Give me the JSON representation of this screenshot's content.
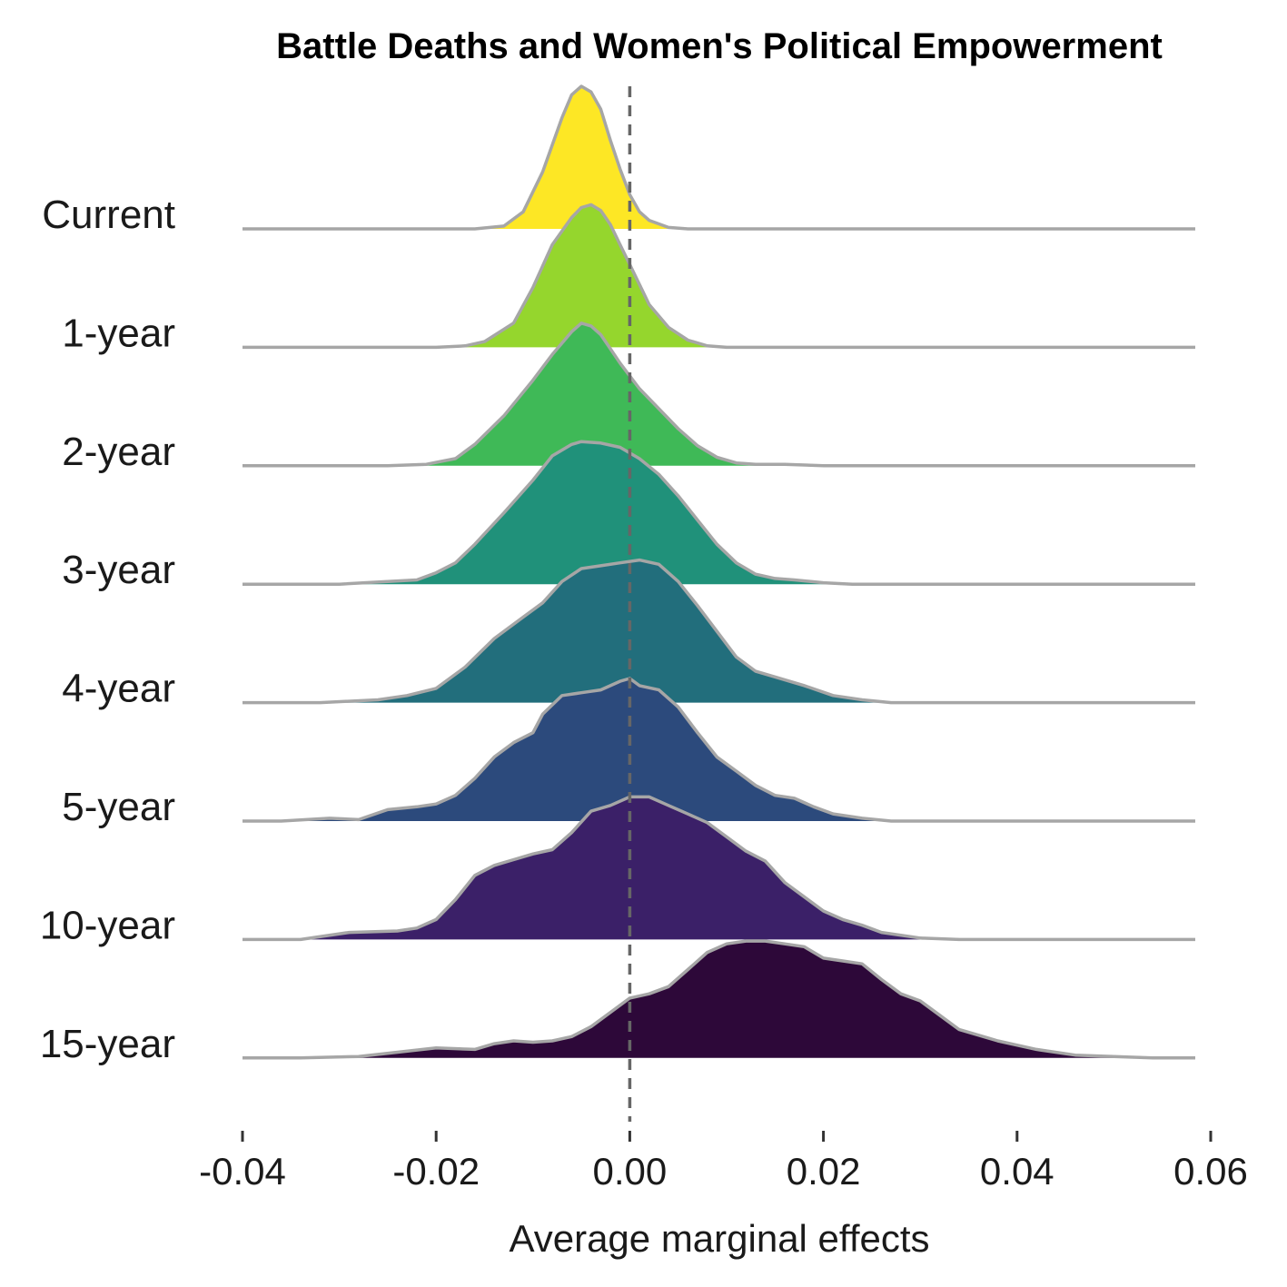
{
  "chart_data": {
    "type": "ridgeline",
    "title": "Battle Deaths and Women's Political Empowerment",
    "xlabel": "Average marginal effects",
    "ylabel": "",
    "xlim": [
      -0.04,
      0.06
    ],
    "xticks": [
      -0.04,
      -0.02,
      0.0,
      0.02,
      0.04,
      0.06
    ],
    "xtick_labels": [
      "-0.04",
      "-0.02",
      "0.00",
      "0.02",
      "0.04",
      "0.06"
    ],
    "reference_line": {
      "x": 0.0,
      "style": "dashed",
      "color": "#666666"
    },
    "outline_color": "#a6a6a6",
    "grid": false,
    "legend": "none",
    "series": [
      {
        "name": "Current",
        "color": "#fde725",
        "density": [
          [
            -0.04,
            0
          ],
          [
            -0.016,
            0
          ],
          [
            -0.013,
            0.02
          ],
          [
            -0.011,
            0.12
          ],
          [
            -0.009,
            0.4
          ],
          [
            -0.007,
            0.78
          ],
          [
            -0.006,
            0.94
          ],
          [
            -0.005,
            1.0
          ],
          [
            -0.004,
            0.96
          ],
          [
            -0.003,
            0.84
          ],
          [
            -0.002,
            0.62
          ],
          [
            -0.001,
            0.42
          ],
          [
            0.0,
            0.24
          ],
          [
            0.001,
            0.12
          ],
          [
            0.002,
            0.06
          ],
          [
            0.004,
            0.01
          ],
          [
            0.006,
            0
          ],
          [
            0.058,
            0
          ]
        ]
      },
      {
        "name": "1-year",
        "color": "#95d62d",
        "density": [
          [
            -0.04,
            0
          ],
          [
            -0.02,
            0
          ],
          [
            -0.017,
            0.01
          ],
          [
            -0.015,
            0.04
          ],
          [
            -0.012,
            0.17
          ],
          [
            -0.01,
            0.42
          ],
          [
            -0.008,
            0.72
          ],
          [
            -0.006,
            0.91
          ],
          [
            -0.005,
            0.98
          ],
          [
            -0.004,
            1.0
          ],
          [
            -0.003,
            0.96
          ],
          [
            -0.002,
            0.86
          ],
          [
            -0.001,
            0.72
          ],
          [
            0.0,
            0.58
          ],
          [
            0.001,
            0.44
          ],
          [
            0.002,
            0.3
          ],
          [
            0.004,
            0.14
          ],
          [
            0.006,
            0.05
          ],
          [
            0.008,
            0.01
          ],
          [
            0.01,
            0
          ],
          [
            0.058,
            0
          ]
        ]
      },
      {
        "name": "2-year",
        "color": "#3fb957",
        "density": [
          [
            -0.04,
            0
          ],
          [
            -0.025,
            0
          ],
          [
            -0.021,
            0.01
          ],
          [
            -0.018,
            0.05
          ],
          [
            -0.016,
            0.15
          ],
          [
            -0.013,
            0.35
          ],
          [
            -0.01,
            0.6
          ],
          [
            -0.008,
            0.78
          ],
          [
            -0.006,
            0.94
          ],
          [
            -0.005,
            1.0
          ],
          [
            -0.004,
            0.98
          ],
          [
            -0.003,
            0.92
          ],
          [
            -0.002,
            0.82
          ],
          [
            -0.001,
            0.72
          ],
          [
            0.0,
            0.63
          ],
          [
            0.001,
            0.54
          ],
          [
            0.003,
            0.4
          ],
          [
            0.005,
            0.26
          ],
          [
            0.007,
            0.14
          ],
          [
            0.009,
            0.06
          ],
          [
            0.011,
            0.02
          ],
          [
            0.013,
            0.01
          ],
          [
            0.016,
            0.01
          ],
          [
            0.02,
            0
          ],
          [
            0.058,
            0
          ]
        ]
      },
      {
        "name": "3-year",
        "color": "#20917a",
        "density": [
          [
            -0.04,
            0
          ],
          [
            -0.03,
            0
          ],
          [
            -0.022,
            0.03
          ],
          [
            -0.02,
            0.08
          ],
          [
            -0.018,
            0.15
          ],
          [
            -0.016,
            0.28
          ],
          [
            -0.013,
            0.5
          ],
          [
            -0.01,
            0.73
          ],
          [
            -0.008,
            0.9
          ],
          [
            -0.006,
            0.98
          ],
          [
            -0.005,
            1.0
          ],
          [
            -0.003,
            0.99
          ],
          [
            -0.001,
            0.96
          ],
          [
            0.001,
            0.88
          ],
          [
            0.003,
            0.77
          ],
          [
            0.005,
            0.62
          ],
          [
            0.007,
            0.45
          ],
          [
            0.009,
            0.28
          ],
          [
            0.011,
            0.15
          ],
          [
            0.013,
            0.07
          ],
          [
            0.015,
            0.04
          ],
          [
            0.017,
            0.03
          ],
          [
            0.02,
            0.01
          ],
          [
            0.023,
            0
          ],
          [
            0.058,
            0
          ]
        ]
      },
      {
        "name": "4-year",
        "color": "#226e7c",
        "density": [
          [
            -0.04,
            0
          ],
          [
            -0.032,
            0
          ],
          [
            -0.026,
            0.02
          ],
          [
            -0.023,
            0.05
          ],
          [
            -0.02,
            0.1
          ],
          [
            -0.017,
            0.25
          ],
          [
            -0.014,
            0.45
          ],
          [
            -0.011,
            0.6
          ],
          [
            -0.009,
            0.7
          ],
          [
            -0.007,
            0.85
          ],
          [
            -0.005,
            0.94
          ],
          [
            -0.003,
            0.96
          ],
          [
            -0.001,
            0.98
          ],
          [
            0.001,
            1.0
          ],
          [
            0.003,
            0.97
          ],
          [
            0.005,
            0.85
          ],
          [
            0.007,
            0.68
          ],
          [
            0.009,
            0.5
          ],
          [
            0.011,
            0.32
          ],
          [
            0.013,
            0.22
          ],
          [
            0.015,
            0.18
          ],
          [
            0.018,
            0.12
          ],
          [
            0.021,
            0.05
          ],
          [
            0.024,
            0.02
          ],
          [
            0.027,
            0
          ],
          [
            0.058,
            0
          ]
        ]
      },
      {
        "name": "5-year",
        "color": "#2c4a7c",
        "density": [
          [
            -0.04,
            0
          ],
          [
            -0.036,
            0
          ],
          [
            -0.031,
            0.02
          ],
          [
            -0.028,
            0.01
          ],
          [
            -0.025,
            0.08
          ],
          [
            -0.022,
            0.1
          ],
          [
            -0.02,
            0.12
          ],
          [
            -0.018,
            0.18
          ],
          [
            -0.016,
            0.3
          ],
          [
            -0.014,
            0.45
          ],
          [
            -0.012,
            0.55
          ],
          [
            -0.01,
            0.62
          ],
          [
            -0.009,
            0.75
          ],
          [
            -0.007,
            0.88
          ],
          [
            -0.005,
            0.9
          ],
          [
            -0.003,
            0.92
          ],
          [
            -0.001,
            0.98
          ],
          [
            0.0,
            1.0
          ],
          [
            0.001,
            0.95
          ],
          [
            0.003,
            0.92
          ],
          [
            0.005,
            0.8
          ],
          [
            0.007,
            0.62
          ],
          [
            0.009,
            0.45
          ],
          [
            0.011,
            0.35
          ],
          [
            0.013,
            0.25
          ],
          [
            0.015,
            0.18
          ],
          [
            0.017,
            0.16
          ],
          [
            0.019,
            0.1
          ],
          [
            0.021,
            0.05
          ],
          [
            0.024,
            0.02
          ],
          [
            0.027,
            0
          ],
          [
            0.058,
            0
          ]
        ]
      },
      {
        "name": "10-year",
        "color": "#3b2068",
        "density": [
          [
            -0.04,
            0
          ],
          [
            -0.034,
            0
          ],
          [
            -0.029,
            0.05
          ],
          [
            -0.024,
            0.06
          ],
          [
            -0.022,
            0.08
          ],
          [
            -0.02,
            0.14
          ],
          [
            -0.018,
            0.28
          ],
          [
            -0.016,
            0.45
          ],
          [
            -0.014,
            0.52
          ],
          [
            -0.012,
            0.56
          ],
          [
            -0.01,
            0.6
          ],
          [
            -0.008,
            0.63
          ],
          [
            -0.006,
            0.75
          ],
          [
            -0.004,
            0.9
          ],
          [
            -0.002,
            0.94
          ],
          [
            0.0,
            1.0
          ],
          [
            0.002,
            1.0
          ],
          [
            0.004,
            0.94
          ],
          [
            0.006,
            0.88
          ],
          [
            0.008,
            0.82
          ],
          [
            0.01,
            0.72
          ],
          [
            0.012,
            0.62
          ],
          [
            0.014,
            0.55
          ],
          [
            0.016,
            0.4
          ],
          [
            0.018,
            0.3
          ],
          [
            0.02,
            0.2
          ],
          [
            0.022,
            0.14
          ],
          [
            0.024,
            0.1
          ],
          [
            0.026,
            0.05
          ],
          [
            0.03,
            0.01
          ],
          [
            0.034,
            0
          ],
          [
            0.058,
            0
          ]
        ]
      },
      {
        "name": "15-year",
        "color": "#2d0839",
        "density": [
          [
            -0.04,
            0
          ],
          [
            -0.034,
            0
          ],
          [
            -0.028,
            0.01
          ],
          [
            -0.024,
            0.04
          ],
          [
            -0.02,
            0.07
          ],
          [
            -0.016,
            0.06
          ],
          [
            -0.014,
            0.1
          ],
          [
            -0.012,
            0.12
          ],
          [
            -0.01,
            0.11
          ],
          [
            -0.008,
            0.12
          ],
          [
            -0.006,
            0.15
          ],
          [
            -0.004,
            0.22
          ],
          [
            -0.002,
            0.32
          ],
          [
            0.0,
            0.42
          ],
          [
            0.002,
            0.45
          ],
          [
            0.004,
            0.5
          ],
          [
            0.006,
            0.62
          ],
          [
            0.008,
            0.74
          ],
          [
            0.01,
            0.8
          ],
          [
            0.012,
            0.82
          ],
          [
            0.014,
            0.82
          ],
          [
            0.016,
            0.8
          ],
          [
            0.018,
            0.78
          ],
          [
            0.02,
            0.7
          ],
          [
            0.022,
            0.68
          ],
          [
            0.024,
            0.66
          ],
          [
            0.026,
            0.55
          ],
          [
            0.028,
            0.45
          ],
          [
            0.03,
            0.4
          ],
          [
            0.032,
            0.3
          ],
          [
            0.034,
            0.2
          ],
          [
            0.036,
            0.16
          ],
          [
            0.038,
            0.12
          ],
          [
            0.042,
            0.06
          ],
          [
            0.046,
            0.02
          ],
          [
            0.05,
            0.01
          ],
          [
            0.054,
            0
          ],
          [
            0.058,
            0
          ]
        ]
      }
    ]
  }
}
